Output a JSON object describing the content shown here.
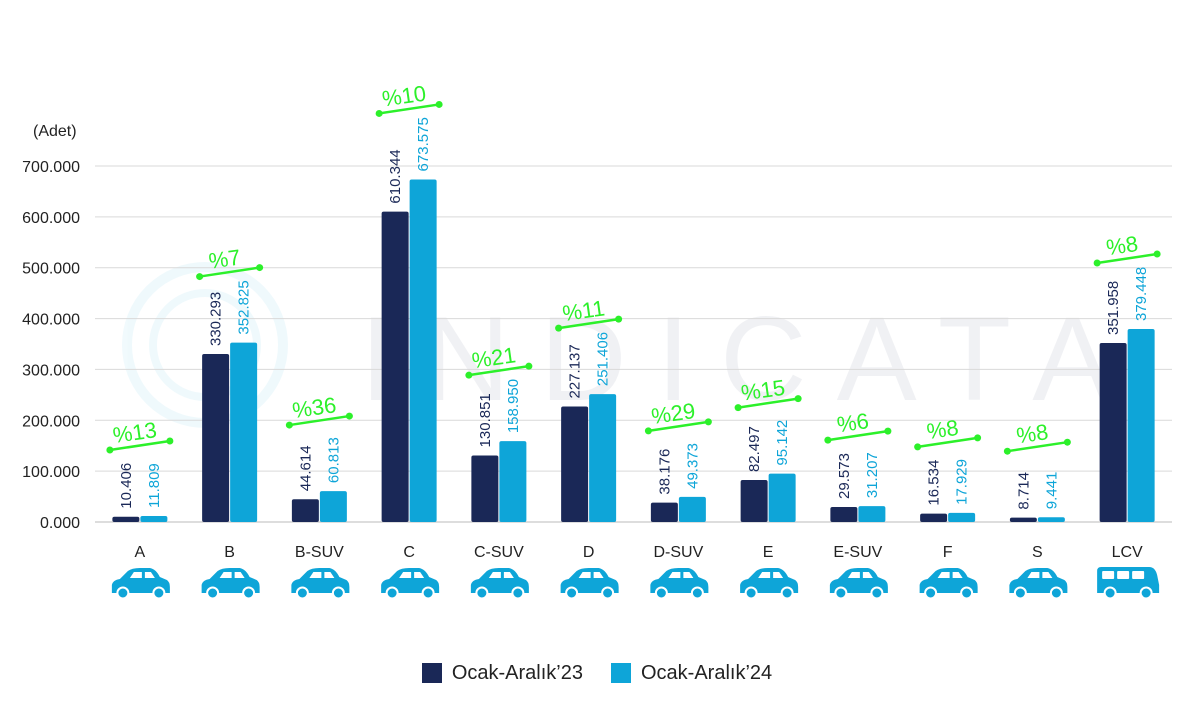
{
  "chart_data": {
    "type": "bar",
    "title": "",
    "ylabel": "(Adet)",
    "xlabel": "",
    "ylim": [
      0,
      700000
    ],
    "yticks": [
      "0.000",
      "100.000",
      "200.000",
      "300.000",
      "400.000",
      "500.000",
      "600.000",
      "700.000"
    ],
    "categories": [
      "A",
      "B",
      "B-SUV",
      "C",
      "C-SUV",
      "D",
      "D-SUV",
      "E",
      "E-SUV",
      "F",
      "S",
      "LCV"
    ],
    "series": [
      {
        "name": "Ocak-Aralık’23",
        "color": "#1a2857",
        "values": [
          10406,
          330293,
          44614,
          610344,
          130851,
          227137,
          38176,
          82497,
          29573,
          16534,
          8714,
          351958
        ],
        "labels": [
          "10.406",
          "330.293",
          "44.614",
          "610.344",
          "130.851",
          "227.137",
          "38.176",
          "82.497",
          "29.573",
          "16.534",
          "8.714",
          "351.958"
        ]
      },
      {
        "name": "Ocak-Aralık’24",
        "color": "#0ea5d8",
        "values": [
          11809,
          352825,
          60813,
          673575,
          158950,
          251406,
          49373,
          95142,
          31207,
          17929,
          9441,
          379448
        ],
        "labels": [
          "11.809",
          "352.825",
          "60.813",
          "673.575",
          "158.950",
          "251.406",
          "49.373",
          "95.142",
          "31.207",
          "17.929",
          "9.441",
          "379.448"
        ]
      }
    ],
    "growth_labels": [
      "%13",
      "%7",
      "%36",
      "%10",
      "%21",
      "%11",
      "%29",
      "%15",
      "%6",
      "%8",
      "%8",
      "%8"
    ],
    "growth_color": "#2cf02a",
    "grid": true,
    "legend_position": "bottom",
    "category_icons": [
      "car-icon",
      "car-icon",
      "car-icon",
      "car-icon",
      "car-icon",
      "car-icon",
      "car-icon",
      "car-icon",
      "car-icon",
      "car-icon",
      "car-icon",
      "van-icon"
    ],
    "icon_color": "#0ea5d8"
  }
}
